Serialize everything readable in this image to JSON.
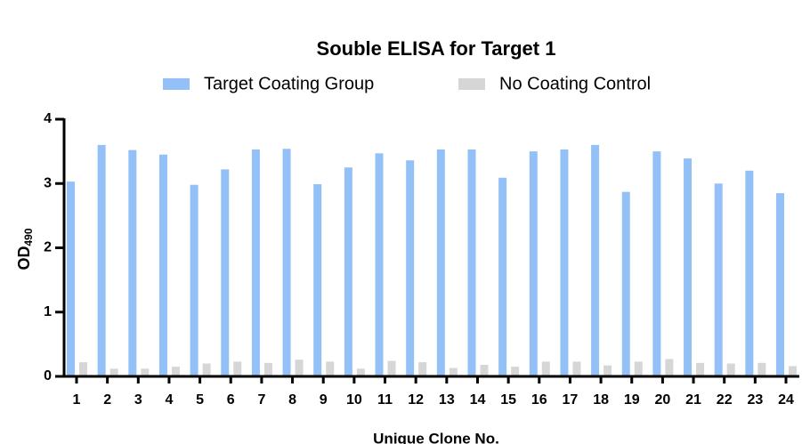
{
  "chart_data": {
    "type": "bar",
    "title": "Souble ELISA for Target 1",
    "x_label": "Unique Clone No.",
    "y_label": {
      "main": "OD",
      "sub": "490"
    },
    "categories": [
      "1",
      "2",
      "3",
      "4",
      "5",
      "6",
      "7",
      "8",
      "9",
      "10",
      "11",
      "12",
      "13",
      "14",
      "15",
      "16",
      "17",
      "18",
      "19",
      "20",
      "21",
      "22",
      "23",
      "24"
    ],
    "series": [
      {
        "name": "Target Coating Group",
        "color": "#93c1f7",
        "values": [
          3.03,
          3.6,
          3.52,
          3.45,
          2.98,
          3.22,
          3.53,
          3.54,
          2.99,
          3.25,
          3.47,
          3.36,
          3.53,
          3.53,
          3.09,
          3.5,
          3.53,
          3.6,
          2.87,
          3.5,
          3.39,
          3.0,
          3.2,
          2.85
        ]
      },
      {
        "name": "No Coating Control",
        "color": "#d6d6d6",
        "values": [
          0.22,
          0.12,
          0.12,
          0.15,
          0.2,
          0.23,
          0.21,
          0.26,
          0.23,
          0.12,
          0.24,
          0.22,
          0.13,
          0.18,
          0.15,
          0.23,
          0.23,
          0.17,
          0.23,
          0.27,
          0.21,
          0.2,
          0.21,
          0.16
        ]
      }
    ],
    "ylim": [
      0,
      4
    ],
    "yticks": [
      0,
      1,
      2,
      3,
      4
    ],
    "grid": false
  }
}
